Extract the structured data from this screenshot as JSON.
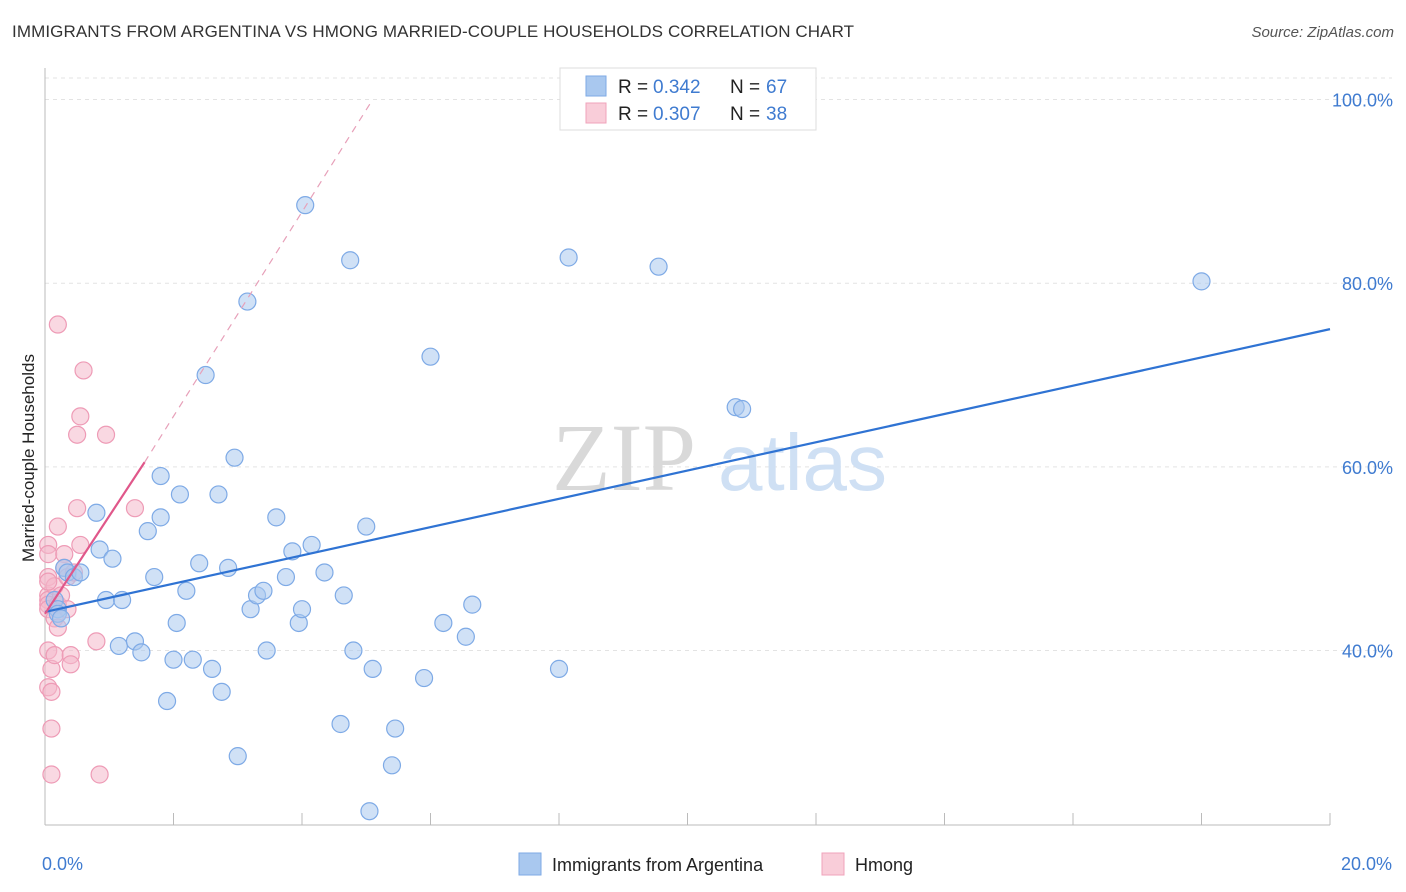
{
  "header": {
    "title": "IMMIGRANTS FROM ARGENTINA VS HMONG MARRIED-COUPLE HOUSEHOLDS CORRELATION CHART",
    "source": "Source: ZipAtlas.com"
  },
  "watermark": {
    "zip": "ZIP",
    "atlas": "atlas"
  },
  "legend_stats": [
    {
      "r_label": "R = ",
      "r_value": "0.342",
      "n_label": "N = ",
      "n_value": "67"
    },
    {
      "r_label": "R = ",
      "r_value": "0.307",
      "n_label": "N = ",
      "n_value": "38"
    }
  ],
  "chart_data": {
    "type": "scatter",
    "title": "IMMIGRANTS FROM ARGENTINA VS HMONG MARRIED-COUPLE HOUSEHOLDS CORRELATION CHART",
    "xlabel": "",
    "ylabel": "Married-couple Households",
    "xlim": [
      0,
      20
    ],
    "ylim": [
      21,
      103
    ],
    "x_tick_labels": [
      "0.0%",
      "20.0%"
    ],
    "y_ticks": [
      40,
      60,
      80,
      100
    ],
    "y_tick_labels": [
      "40.0%",
      "60.0%",
      "80.0%",
      "100.0%"
    ],
    "grid": true,
    "legend_position": "bottom-center",
    "colors": {
      "argentina": "#a9c8ef",
      "argentina_line": "#2f73d3",
      "hmong": "#f4b8ca",
      "hmong_line": "#e0578a"
    },
    "series": [
      {
        "name": "Immigrants from Argentina",
        "R": 0.342,
        "N": 67,
        "trend": {
          "x": [
            0,
            20
          ],
          "y": [
            44.2,
            75.0
          ]
        },
        "points": [
          [
            0.15,
            45.5
          ],
          [
            0.2,
            44.5
          ],
          [
            0.2,
            44.0
          ],
          [
            0.3,
            49.0
          ],
          [
            0.35,
            48.5
          ],
          [
            0.45,
            48.0
          ],
          [
            0.55,
            48.5
          ],
          [
            0.8,
            55.0
          ],
          [
            0.85,
            51.0
          ],
          [
            0.95,
            45.5
          ],
          [
            1.05,
            50.0
          ],
          [
            1.15,
            40.5
          ],
          [
            1.2,
            45.5
          ],
          [
            1.4,
            41.0
          ],
          [
            1.5,
            39.8
          ],
          [
            1.6,
            53.0
          ],
          [
            1.7,
            48.0
          ],
          [
            1.8,
            59.0
          ],
          [
            1.8,
            54.5
          ],
          [
            1.9,
            34.5
          ],
          [
            2.0,
            39.0
          ],
          [
            2.05,
            43.0
          ],
          [
            2.1,
            57.0
          ],
          [
            2.2,
            46.5
          ],
          [
            2.3,
            39.0
          ],
          [
            2.4,
            49.5
          ],
          [
            2.5,
            70.0
          ],
          [
            2.6,
            38.0
          ],
          [
            2.7,
            57.0
          ],
          [
            2.75,
            35.5
          ],
          [
            2.85,
            49.0
          ],
          [
            2.95,
            61.0
          ],
          [
            3.0,
            28.5
          ],
          [
            3.15,
            78.0
          ],
          [
            3.2,
            44.5
          ],
          [
            3.3,
            46.0
          ],
          [
            3.4,
            46.5
          ],
          [
            3.45,
            40.0
          ],
          [
            3.6,
            54.5
          ],
          [
            3.75,
            48.0
          ],
          [
            3.85,
            50.8
          ],
          [
            3.95,
            43.0
          ],
          [
            4.0,
            44.5
          ],
          [
            4.05,
            88.5
          ],
          [
            4.15,
            51.5
          ],
          [
            4.35,
            48.5
          ],
          [
            4.6,
            32.0
          ],
          [
            4.65,
            46.0
          ],
          [
            4.75,
            82.5
          ],
          [
            4.8,
            40.0
          ],
          [
            5.0,
            53.5
          ],
          [
            5.05,
            22.5
          ],
          [
            5.1,
            38.0
          ],
          [
            5.4,
            27.5
          ],
          [
            5.45,
            31.5
          ],
          [
            5.9,
            37.0
          ],
          [
            6.0,
            72.0
          ],
          [
            6.2,
            43.0
          ],
          [
            6.55,
            41.5
          ],
          [
            6.65,
            45.0
          ],
          [
            8.0,
            38.0
          ],
          [
            8.15,
            82.8
          ],
          [
            9.55,
            81.8
          ],
          [
            10.75,
            66.5
          ],
          [
            10.85,
            66.3
          ],
          [
            18.0,
            80.2
          ],
          [
            0.25,
            43.5
          ]
        ]
      },
      {
        "name": "Hmong",
        "R": 0.307,
        "N": 38,
        "trend": {
          "x": [
            0,
            1.55
          ],
          "y": [
            44.0,
            60.5
          ]
        },
        "trend_ext": {
          "x": [
            1.55,
            5.1
          ],
          "y": [
            60.5,
            100.0
          ]
        },
        "points": [
          [
            0.05,
            46.0
          ],
          [
            0.05,
            45.5
          ],
          [
            0.05,
            45.0
          ],
          [
            0.05,
            44.5
          ],
          [
            0.05,
            40.0
          ],
          [
            0.05,
            36.0
          ],
          [
            0.05,
            51.5
          ],
          [
            0.05,
            50.5
          ],
          [
            0.05,
            48.0
          ],
          [
            0.1,
            26.5
          ],
          [
            0.1,
            31.5
          ],
          [
            0.1,
            35.5
          ],
          [
            0.1,
            38.0
          ],
          [
            0.15,
            43.5
          ],
          [
            0.15,
            39.5
          ],
          [
            0.15,
            47.0
          ],
          [
            0.2,
            45.0
          ],
          [
            0.2,
            42.5
          ],
          [
            0.2,
            75.5
          ],
          [
            0.2,
            53.5
          ],
          [
            0.25,
            46.0
          ],
          [
            0.3,
            50.5
          ],
          [
            0.3,
            49.0
          ],
          [
            0.35,
            44.5
          ],
          [
            0.35,
            48.0
          ],
          [
            0.4,
            39.5
          ],
          [
            0.4,
            38.5
          ],
          [
            0.45,
            48.5
          ],
          [
            0.5,
            55.5
          ],
          [
            0.5,
            63.5
          ],
          [
            0.55,
            65.5
          ],
          [
            0.55,
            51.5
          ],
          [
            0.6,
            70.5
          ],
          [
            0.8,
            41.0
          ],
          [
            0.85,
            26.5
          ],
          [
            0.95,
            63.5
          ],
          [
            1.4,
            55.5
          ],
          [
            0.05,
            47.5
          ]
        ]
      }
    ]
  },
  "bottom_legend": [
    {
      "label": "Immigrants from Argentina"
    },
    {
      "label": "Hmong"
    }
  ]
}
